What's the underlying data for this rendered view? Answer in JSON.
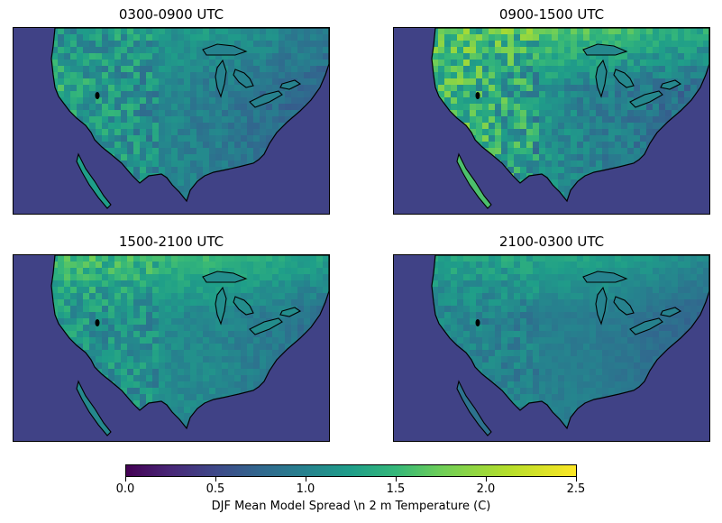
{
  "chart_data": {
    "type": "heatmap",
    "colormap": "viridis",
    "region": "Contiguous United States",
    "panels": [
      {
        "title": "0300-0900 UTC",
        "west_level": 1.45,
        "east_level": 0.95,
        "north_level": 1.2,
        "ocean_level": 0.45,
        "speckle": 0.55
      },
      {
        "title": "0900-1500 UTC",
        "west_level": 1.8,
        "east_level": 1.0,
        "north_level": 1.6,
        "ocean_level": 0.45,
        "speckle": 0.75
      },
      {
        "title": "1500-2100 UTC",
        "west_level": 1.25,
        "east_level": 1.05,
        "north_level": 1.5,
        "ocean_level": 0.45,
        "speckle": 0.45
      },
      {
        "title": "2100-0300 UTC",
        "west_level": 1.05,
        "east_level": 0.95,
        "north_level": 1.3,
        "ocean_level": 0.45,
        "speckle": 0.3
      }
    ],
    "colorbar": {
      "label": "DJF Mean Model Spread \\n 2 m Temperature (C)",
      "range": [
        0.0,
        2.5
      ],
      "ticks": [
        "0.0",
        "0.5",
        "1.0",
        "1.5",
        "2.0",
        "2.5"
      ]
    }
  }
}
